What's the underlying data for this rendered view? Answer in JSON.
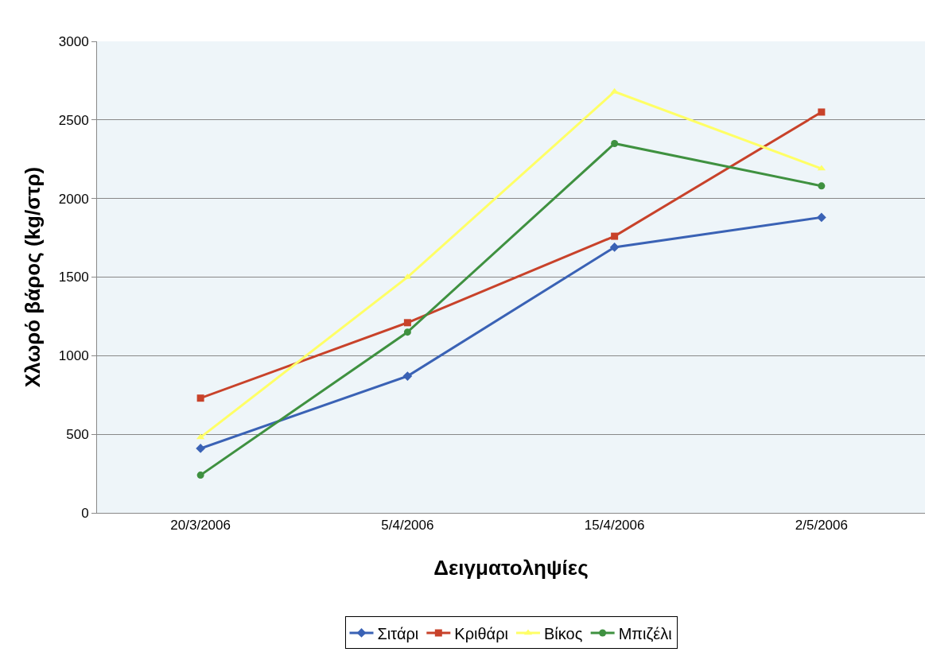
{
  "chart_data": {
    "type": "line",
    "xlabel": "Δειγματοληψίες",
    "ylabel": "Χλωρό βάρος (kg/στρ)",
    "categories": [
      "20/3/2006",
      "5/4/2006",
      "15/4/2006",
      "2/5/2006"
    ],
    "series": [
      {
        "name": "Σιτάρι",
        "color": "#3a62b5",
        "marker": "diamond",
        "values": [
          410,
          870,
          1690,
          1880
        ]
      },
      {
        "name": "Κριθάρι",
        "color": "#c8422a",
        "marker": "square",
        "values": [
          730,
          1210,
          1760,
          2550
        ]
      },
      {
        "name": "Βίκος",
        "color": "#ffff66",
        "marker": "triangle",
        "values": [
          480,
          1500,
          2680,
          2190
        ]
      },
      {
        "name": "Μπιζέλι",
        "color": "#3f9140",
        "marker": "circle",
        "values": [
          240,
          1150,
          2350,
          2080
        ]
      }
    ],
    "ylim": [
      0,
      3000
    ],
    "yticks": [
      0,
      500,
      1000,
      1500,
      2000,
      2500,
      3000
    ],
    "grid": "y",
    "legend": "bottom",
    "line_style": "solid"
  }
}
